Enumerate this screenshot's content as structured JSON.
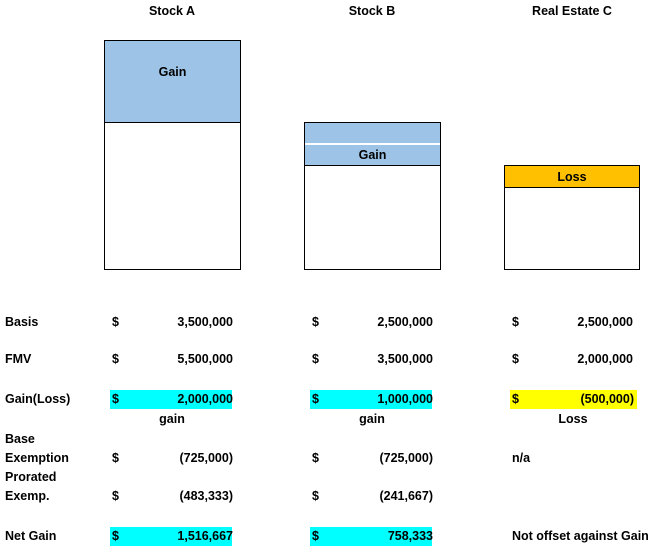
{
  "headers": {
    "a": "Stock A",
    "b": "Stock B",
    "c": "Real Estate C"
  },
  "bars": {
    "a": {
      "band_label": "Gain"
    },
    "b": {
      "band_label": "Gain"
    },
    "c": {
      "band_label": "Loss"
    }
  },
  "colors": {
    "gain_band": "#9dc3e6",
    "loss_band": "#ffc000",
    "highlight_cyan": "#00ffff",
    "highlight_yellow": "#ffff00"
  },
  "rows": {
    "basis": {
      "label": "Basis",
      "a": {
        "cur": "$",
        "val": "3,500,000"
      },
      "b": {
        "cur": "$",
        "val": "2,500,000"
      },
      "c": {
        "cur": "$",
        "val": "2,500,000"
      }
    },
    "fmv": {
      "label": "FMV",
      "a": {
        "cur": "$",
        "val": "5,500,000"
      },
      "b": {
        "cur": "$",
        "val": "3,500,000"
      },
      "c": {
        "cur": "$",
        "val": "2,000,000"
      }
    },
    "gain": {
      "label": "Gain(Loss)",
      "a": {
        "cur": "$",
        "val": "2,000,000",
        "sub": "gain"
      },
      "b": {
        "cur": "$",
        "val": "1,000,000",
        "sub": "gain"
      },
      "c": {
        "cur": "$",
        "val": "(500,000)",
        "sub": "Loss"
      }
    },
    "base": {
      "label_1": "Base",
      "label_2": "Exemption",
      "a": {
        "cur": "$",
        "val": "(725,000)"
      },
      "b": {
        "cur": "$",
        "val": "(725,000)"
      },
      "c": {
        "val": "n/a"
      }
    },
    "prorated": {
      "label_1": "Prorated",
      "label_2": "Exemp.",
      "a": {
        "cur": "$",
        "val": "(483,333)"
      },
      "b": {
        "cur": "$",
        "val": "(241,667)"
      }
    },
    "net": {
      "label": "Net Gain",
      "a": {
        "cur": "$",
        "val": "1,516,667"
      },
      "b": {
        "cur": "$",
        "val": "758,333"
      },
      "c": {
        "val": "Not offset against Gain"
      }
    }
  }
}
